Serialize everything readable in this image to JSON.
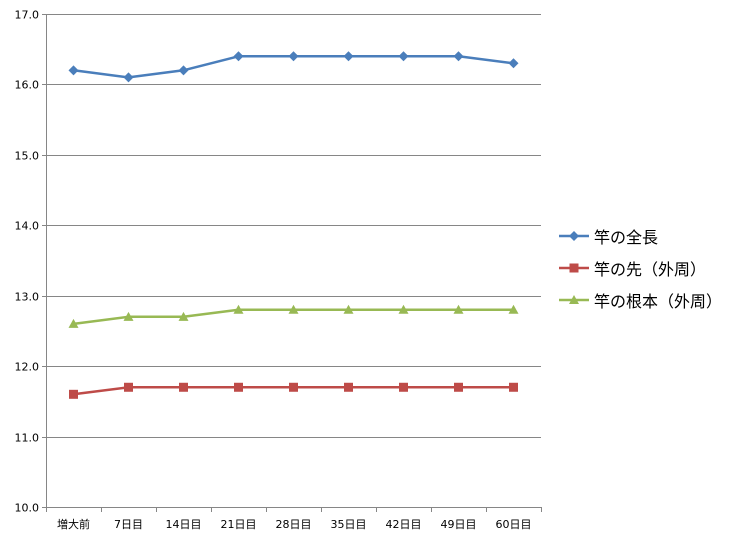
{
  "chart_data": {
    "type": "line",
    "categories": [
      "増大前",
      "7日目",
      "14日目",
      "21日目",
      "28日目",
      "35日目",
      "42日目",
      "49日目",
      "60日目"
    ],
    "ylim": [
      10.0,
      17.0
    ],
    "yticks": [
      "10.0",
      "11.0",
      "12.0",
      "13.0",
      "14.0",
      "15.0",
      "16.0",
      "17.0"
    ],
    "grid": true,
    "legend_position": "right",
    "series": [
      {
        "name": "竿の全長",
        "color": "#4A7EBB",
        "marker": "diamond",
        "values": [
          16.2,
          16.1,
          16.2,
          16.4,
          16.4,
          16.4,
          16.4,
          16.4,
          16.3
        ]
      },
      {
        "name": "竿の先（外周）",
        "color": "#BE4B48",
        "marker": "square",
        "values": [
          11.6,
          11.7,
          11.7,
          11.7,
          11.7,
          11.7,
          11.7,
          11.7,
          11.7
        ]
      },
      {
        "name": "竿の根本（外周）",
        "color": "#98B954",
        "marker": "triangle",
        "values": [
          12.6,
          12.7,
          12.7,
          12.8,
          12.8,
          12.8,
          12.8,
          12.8,
          12.8
        ]
      }
    ]
  }
}
